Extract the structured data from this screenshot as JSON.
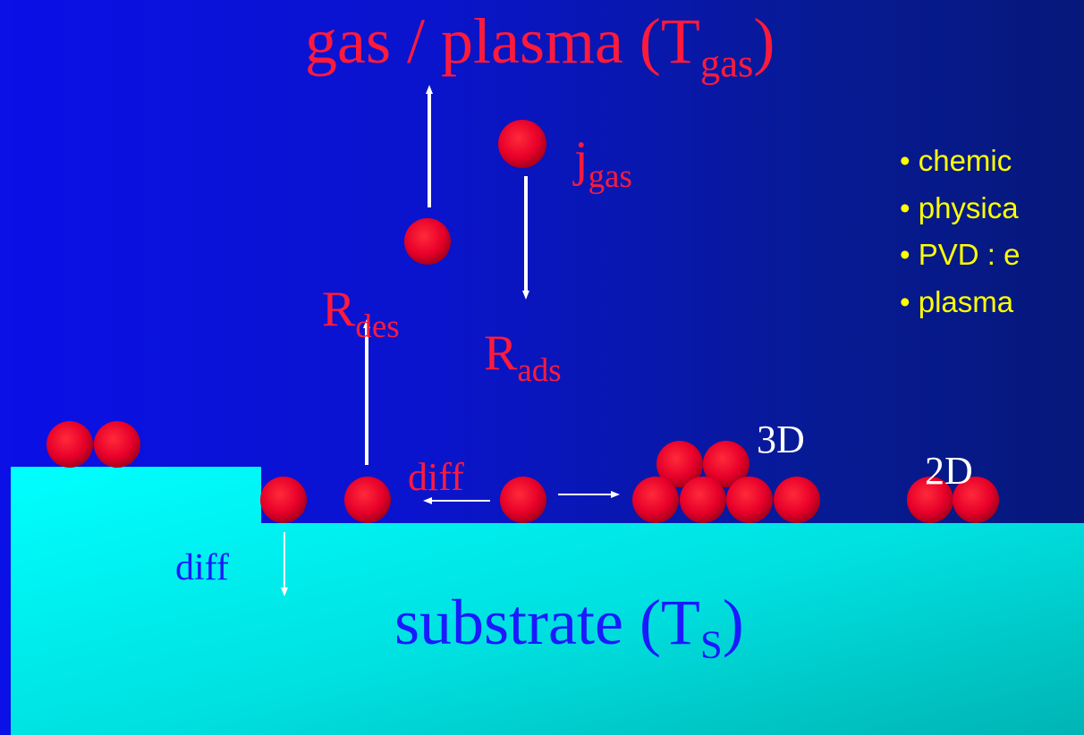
{
  "title": {
    "main": "gas / plasma (T",
    "sub": "gas",
    "close": ")"
  },
  "flux": {
    "main": "j",
    "sub": "gas"
  },
  "desorption": {
    "main": "R",
    "sub": "des"
  },
  "adsorption": {
    "main": "R",
    "sub": "ads"
  },
  "diff_surface": "diff",
  "diff_bulk": "diff",
  "label_3d": "3D",
  "label_2d": "2D",
  "substrate": {
    "main": "substrate (T",
    "sub": "S",
    "close": ")"
  },
  "bullets": [
    "• chemic",
    "• physica",
    "• PVD : e",
    "• plasma"
  ],
  "colors": {
    "particle": "#e8002a",
    "substrate_top": "#00ffff",
    "substrate_bottom": "#00b8b8",
    "label_red": "#ff1a3c",
    "bullet_yellow": "#ffff00",
    "bulk_label_blue": "#1a1aff"
  }
}
